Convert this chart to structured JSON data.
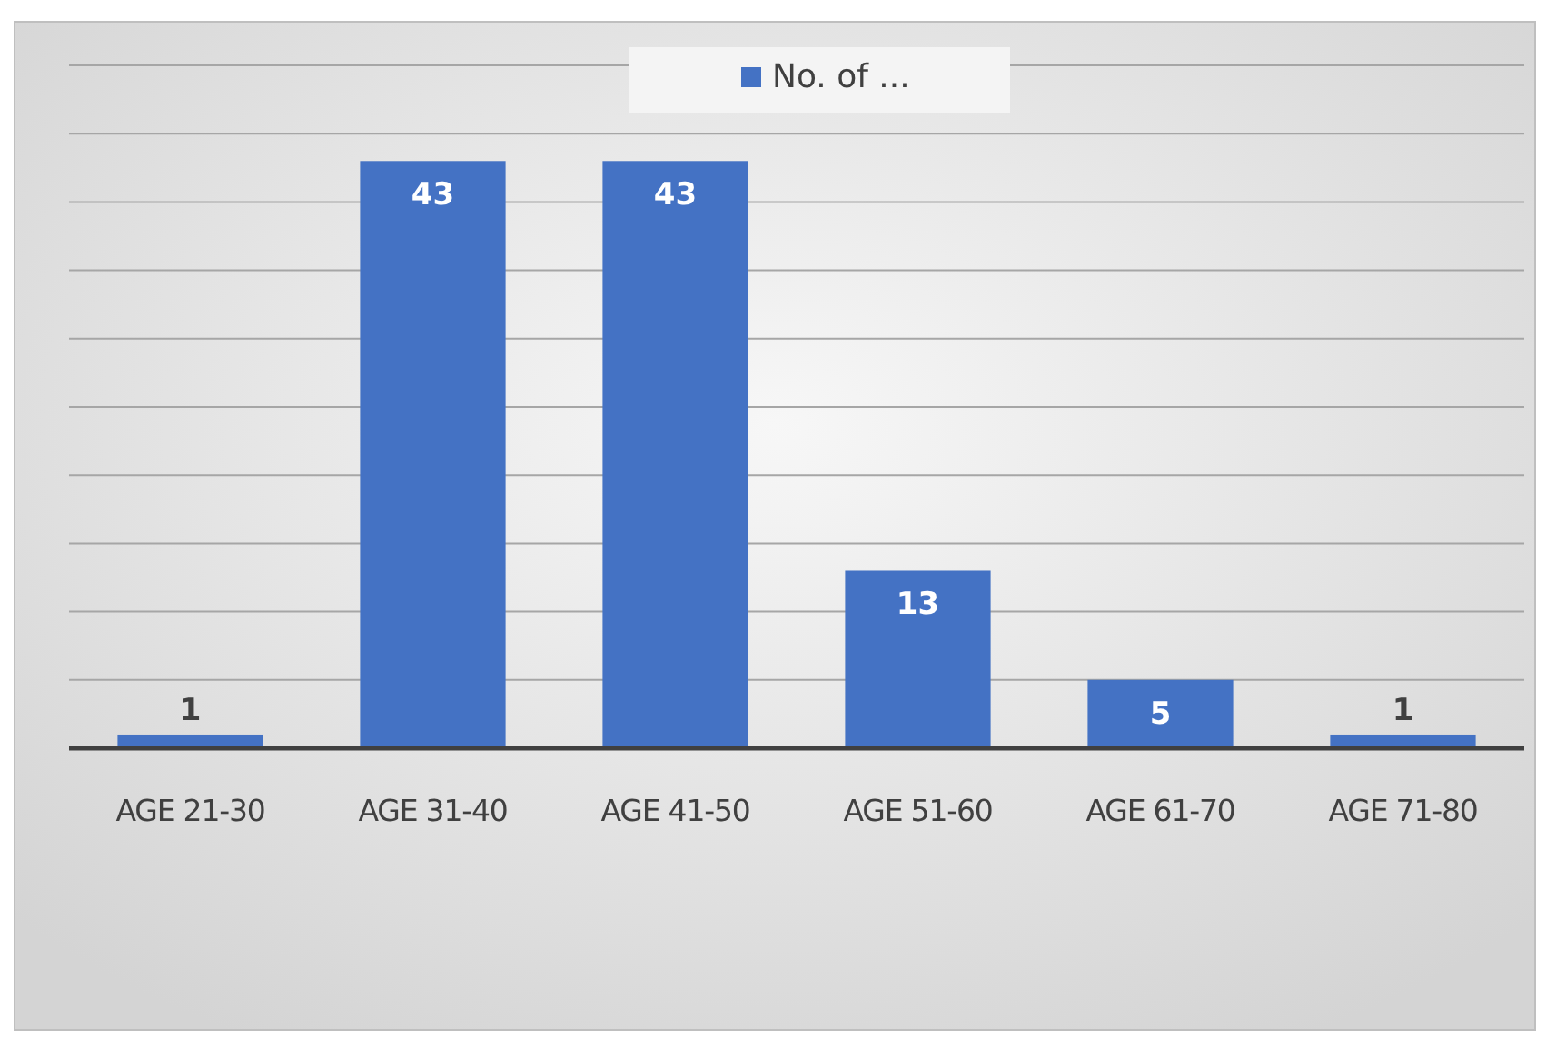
{
  "chart_data": {
    "type": "bar",
    "categories": [
      "AGE 21-30",
      "AGE 31-40",
      "AGE 41-50",
      "AGE 51-60",
      "AGE 61-70",
      "AGE 71-80"
    ],
    "series": [
      {
        "name": "No. of ...",
        "color": "#4472c4",
        "values": [
          1,
          43,
          43,
          13,
          5,
          1
        ]
      }
    ],
    "ylim": [
      0,
      50
    ],
    "yticks": [
      0,
      5,
      10,
      15,
      20,
      25,
      30,
      35,
      40,
      45,
      50
    ],
    "tick_labels": "x",
    "grid": "y",
    "legend": "top",
    "data_labels": true
  }
}
